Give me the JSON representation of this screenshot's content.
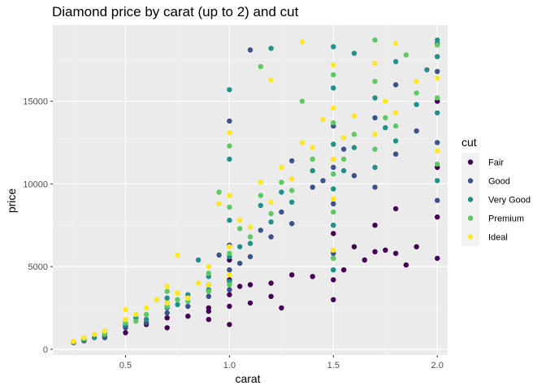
{
  "chart_data": {
    "type": "scatter",
    "title": "Diamond price by carat (up to 2) and cut",
    "xlabel": "carat",
    "ylabel": "price",
    "xlim": [
      0.15,
      2.05
    ],
    "ylim": [
      -350,
      19600
    ],
    "x_ticks": [
      0.5,
      1.0,
      1.5,
      2.0
    ],
    "x_tick_labels": [
      "0.5",
      "1.0",
      "1.5",
      "2.0"
    ],
    "y_ticks": [
      0,
      5000,
      10000,
      15000
    ],
    "y_tick_labels": [
      "0",
      "5000",
      "10000",
      "15000"
    ],
    "grid": true,
    "legend": {
      "title": "cut",
      "position": "right",
      "entries": [
        "Fair",
        "Good",
        "Very Good",
        "Premium",
        "Ideal"
      ]
    },
    "series": [
      {
        "name": "Fair",
        "color": "#440154",
        "points": [
          [
            0.3,
            520
          ],
          [
            0.4,
            800
          ],
          [
            0.5,
            1000
          ],
          [
            0.5,
            1400
          ],
          [
            0.6,
            1500
          ],
          [
            0.7,
            1900
          ],
          [
            0.7,
            1300
          ],
          [
            0.8,
            2000
          ],
          [
            0.9,
            2300
          ],
          [
            0.9,
            2500
          ],
          [
            1.0,
            1500
          ],
          [
            1.0,
            2600
          ],
          [
            1.0,
            3300
          ],
          [
            1.0,
            4200
          ],
          [
            1.05,
            3800
          ],
          [
            1.1,
            2800
          ],
          [
            1.2,
            3200
          ],
          [
            1.2,
            4000
          ],
          [
            1.25,
            2500
          ],
          [
            1.3,
            4500
          ],
          [
            1.4,
            4400
          ],
          [
            1.5,
            3000
          ],
          [
            1.5,
            4200
          ],
          [
            1.5,
            5500
          ],
          [
            1.5,
            7000
          ],
          [
            1.55,
            4800
          ],
          [
            1.6,
            6200
          ],
          [
            1.65,
            5400
          ],
          [
            1.7,
            5900
          ],
          [
            1.7,
            7500
          ],
          [
            1.75,
            6000
          ],
          [
            1.8,
            5800
          ],
          [
            1.8,
            8500
          ],
          [
            1.85,
            5100
          ],
          [
            1.9,
            6200
          ],
          [
            2.0,
            5500
          ],
          [
            2.0,
            8000
          ],
          [
            2.0,
            11000
          ],
          [
            2.0,
            15000
          ],
          [
            1.0,
            5400
          ],
          [
            1.1,
            3900
          ],
          [
            0.9,
            1800
          ]
        ]
      },
      {
        "name": "Good",
        "color": "#3b528b",
        "points": [
          [
            0.25,
            400
          ],
          [
            0.3,
            600
          ],
          [
            0.4,
            700
          ],
          [
            0.5,
            1300
          ],
          [
            0.6,
            1600
          ],
          [
            0.7,
            2200
          ],
          [
            0.7,
            2800
          ],
          [
            0.8,
            2600
          ],
          [
            0.9,
            3200
          ],
          [
            0.9,
            3900
          ],
          [
            1.0,
            3600
          ],
          [
            1.0,
            4800
          ],
          [
            1.0,
            6300
          ],
          [
            1.05,
            5200
          ],
          [
            1.1,
            5600
          ],
          [
            1.15,
            7200
          ],
          [
            1.2,
            6800
          ],
          [
            1.25,
            8300
          ],
          [
            1.3,
            7600
          ],
          [
            1.4,
            9800
          ],
          [
            1.5,
            5800
          ],
          [
            1.5,
            8800
          ],
          [
            1.5,
            11000
          ],
          [
            1.5,
            13500
          ],
          [
            1.55,
            12100
          ],
          [
            1.6,
            10500
          ],
          [
            1.7,
            9800
          ],
          [
            1.7,
            14000
          ],
          [
            1.8,
            11800
          ],
          [
            1.8,
            16000
          ],
          [
            1.9,
            13200
          ],
          [
            2.0,
            9000
          ],
          [
            2.0,
            12500
          ],
          [
            2.0,
            16800
          ],
          [
            2.0,
            18500
          ],
          [
            1.0,
            13800
          ],
          [
            1.1,
            18100
          ],
          [
            0.95,
            5700
          ],
          [
            1.3,
            11400
          ],
          [
            1.45,
            10200
          ]
        ]
      },
      {
        "name": "Very Good",
        "color": "#21908c",
        "points": [
          [
            0.3,
            550
          ],
          [
            0.35,
            700
          ],
          [
            0.4,
            950
          ],
          [
            0.5,
            1500
          ],
          [
            0.55,
            1900
          ],
          [
            0.6,
            1800
          ],
          [
            0.7,
            2500
          ],
          [
            0.7,
            3100
          ],
          [
            0.75,
            2700
          ],
          [
            0.8,
            3300
          ],
          [
            0.9,
            3600
          ],
          [
            0.9,
            4400
          ],
          [
            1.0,
            4100
          ],
          [
            1.0,
            5600
          ],
          [
            1.0,
            7800
          ],
          [
            1.0,
            11500
          ],
          [
            1.05,
            6200
          ],
          [
            1.1,
            6400
          ],
          [
            1.15,
            8700
          ],
          [
            1.2,
            7700
          ],
          [
            1.25,
            9500
          ],
          [
            1.3,
            8900
          ],
          [
            1.4,
            10800
          ],
          [
            1.5,
            4800
          ],
          [
            1.5,
            7500
          ],
          [
            1.5,
            9700
          ],
          [
            1.5,
            12400
          ],
          [
            1.5,
            15800
          ],
          [
            1.5,
            18300
          ],
          [
            1.55,
            10800
          ],
          [
            1.6,
            12200
          ],
          [
            1.7,
            11000
          ],
          [
            1.7,
            15200
          ],
          [
            1.75,
            13400
          ],
          [
            1.8,
            12600
          ],
          [
            1.8,
            17400
          ],
          [
            1.9,
            14800
          ],
          [
            2.0,
            10200
          ],
          [
            2.0,
            14300
          ],
          [
            2.0,
            17700
          ],
          [
            2.0,
            18700
          ],
          [
            1.2,
            18200
          ],
          [
            0.85,
            5400
          ],
          [
            1.0,
            15700
          ],
          [
            1.6,
            17900
          ],
          [
            1.95,
            16900
          ]
        ]
      },
      {
        "name": "Premium",
        "color": "#5ec962",
        "points": [
          [
            0.25,
            450
          ],
          [
            0.3,
            650
          ],
          [
            0.4,
            900
          ],
          [
            0.5,
            1600
          ],
          [
            0.55,
            1700
          ],
          [
            0.6,
            2100
          ],
          [
            0.7,
            2600
          ],
          [
            0.7,
            3500
          ],
          [
            0.75,
            3000
          ],
          [
            0.8,
            2900
          ],
          [
            0.9,
            3500
          ],
          [
            0.9,
            4600
          ],
          [
            1.0,
            3900
          ],
          [
            1.0,
            5800
          ],
          [
            1.0,
            8600
          ],
          [
            1.0,
            12300
          ],
          [
            1.05,
            7300
          ],
          [
            1.1,
            6800
          ],
          [
            1.15,
            9300
          ],
          [
            1.2,
            8200
          ],
          [
            1.25,
            10100
          ],
          [
            1.3,
            9600
          ],
          [
            1.4,
            11500
          ],
          [
            1.5,
            5500
          ],
          [
            1.5,
            8300
          ],
          [
            1.5,
            10600
          ],
          [
            1.5,
            13700
          ],
          [
            1.5,
            16600
          ],
          [
            1.55,
            11500
          ],
          [
            1.6,
            13000
          ],
          [
            1.7,
            12100
          ],
          [
            1.7,
            16200
          ],
          [
            1.7,
            18700
          ],
          [
            1.75,
            14000
          ],
          [
            1.8,
            13500
          ],
          [
            1.85,
            17800
          ],
          [
            1.9,
            15500
          ],
          [
            2.0,
            11200
          ],
          [
            2.0,
            15200
          ],
          [
            2.0,
            18400
          ],
          [
            1.15,
            17100
          ],
          [
            1.35,
            15000
          ],
          [
            0.95,
            9500
          ]
        ]
      },
      {
        "name": "Ideal",
        "color": "#fde725",
        "points": [
          [
            0.25,
            480
          ],
          [
            0.3,
            700
          ],
          [
            0.35,
            900
          ],
          [
            0.4,
            1100
          ],
          [
            0.5,
            1800
          ],
          [
            0.5,
            2400
          ],
          [
            0.55,
            2100
          ],
          [
            0.6,
            2500
          ],
          [
            0.65,
            3000
          ],
          [
            0.7,
            2800
          ],
          [
            0.7,
            3800
          ],
          [
            0.75,
            3400
          ],
          [
            0.8,
            3100
          ],
          [
            0.85,
            4000
          ],
          [
            0.9,
            3900
          ],
          [
            0.9,
            5000
          ],
          [
            1.0,
            4500
          ],
          [
            1.0,
            6200
          ],
          [
            1.0,
            9300
          ],
          [
            1.0,
            13100
          ],
          [
            1.05,
            7800
          ],
          [
            1.1,
            7400
          ],
          [
            1.15,
            10100
          ],
          [
            1.2,
            8900
          ],
          [
            1.25,
            11000
          ],
          [
            1.3,
            10300
          ],
          [
            1.35,
            12500
          ],
          [
            1.4,
            12200
          ],
          [
            1.45,
            13900
          ],
          [
            1.5,
            6000
          ],
          [
            1.5,
            9100
          ],
          [
            1.5,
            11500
          ],
          [
            1.5,
            14600
          ],
          [
            1.5,
            17200
          ],
          [
            1.55,
            12800
          ],
          [
            1.6,
            14100
          ],
          [
            1.7,
            13000
          ],
          [
            1.7,
            17300
          ],
          [
            1.75,
            15000
          ],
          [
            1.8,
            14300
          ],
          [
            1.8,
            18500
          ],
          [
            1.9,
            16200
          ],
          [
            2.0,
            12000
          ],
          [
            2.0,
            16400
          ],
          [
            1.2,
            16300
          ],
          [
            1.35,
            18600
          ],
          [
            0.75,
            5700
          ],
          [
            0.95,
            8800
          ]
        ]
      }
    ]
  }
}
